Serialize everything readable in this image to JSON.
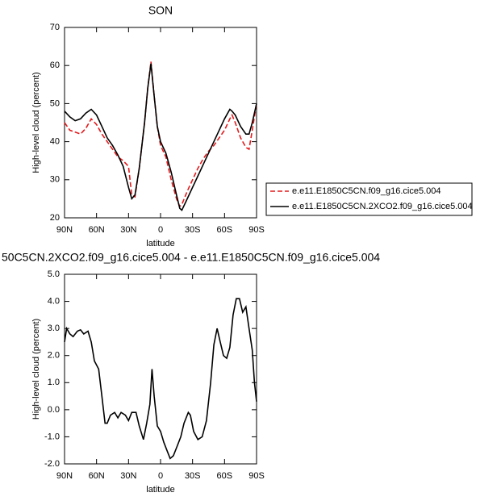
{
  "chart_data": [
    {
      "type": "line",
      "title": "SON",
      "xlabel": "latitude",
      "ylabel": "High-level cloud (percent)",
      "x": [
        90,
        85,
        80,
        75,
        70,
        65,
        60,
        55,
        50,
        45,
        40,
        35,
        30,
        27,
        24,
        20,
        15,
        12,
        9,
        6,
        3,
        0,
        -5,
        -10,
        -15,
        -18,
        -20,
        -25,
        -30,
        -35,
        -40,
        -45,
        -50,
        -55,
        -60,
        -65,
        -67,
        -70,
        -75,
        -80,
        -83,
        -86,
        -90
      ],
      "series": [
        {
          "name": "e.e11.E1850C5CN.f09_g16.cice5.004",
          "color": "#e41a1c",
          "linestyle": "dashed",
          "values": [
            45,
            43,
            42.5,
            42,
            43.5,
            46,
            44.5,
            42,
            40,
            38,
            36,
            35,
            33.5,
            26,
            25.5,
            33,
            45,
            54,
            61,
            52,
            44,
            39,
            36,
            30,
            25,
            23,
            23.5,
            27,
            30,
            33,
            35.5,
            37.5,
            39,
            41,
            43,
            46,
            47,
            45,
            41,
            38.5,
            38,
            43,
            50
          ]
        },
        {
          "name": "e.e11.E1850C5CN.2XCO2.f09_g16.cice5.004",
          "color": "#000000",
          "linestyle": "solid",
          "values": [
            48,
            46.5,
            45.5,
            46,
            47.5,
            48.5,
            47,
            44,
            41,
            39,
            36.5,
            33.5,
            28,
            25,
            26,
            33,
            45,
            54,
            60.5,
            52,
            44,
            40,
            37,
            32,
            26,
            22.5,
            22,
            25,
            28,
            31,
            34,
            37,
            40,
            43,
            46,
            48.5,
            48,
            47,
            44,
            42,
            42,
            45,
            50
          ]
        }
      ],
      "xlim": [
        90,
        -90
      ],
      "xticks": [
        {
          "value": 90,
          "label": "90N"
        },
        {
          "value": 60,
          "label": "60N"
        },
        {
          "value": 30,
          "label": "30N"
        },
        0,
        {
          "value": -30,
          "label": "30S"
        },
        {
          "value": -60,
          "label": "60S"
        },
        {
          "value": -90,
          "label": "90S"
        }
      ],
      "ylim": [
        20,
        70
      ],
      "yticks": [
        20,
        30,
        40,
        50,
        60,
        70
      ],
      "legend": "right"
    },
    {
      "type": "line",
      "title": "50C5CN.2XCO2.f09_g16.cice5.004 - e.e11.E1850C5CN.f09_g16.cice5.004",
      "xlabel": "latitude",
      "ylabel": "High-level cloud (percent)",
      "x": [
        90,
        88,
        85,
        82,
        78,
        75,
        72,
        68,
        65,
        62,
        58,
        55,
        52,
        50,
        47,
        43,
        40,
        37,
        33,
        30,
        27,
        23,
        20,
        16,
        13,
        10,
        8,
        6,
        3,
        0,
        -3,
        -6,
        -9,
        -12,
        -16,
        -19,
        -22,
        -26,
        -28,
        -31,
        -35,
        -39,
        -43,
        -47,
        -50,
        -53,
        -56,
        -59,
        -62,
        -65,
        -68,
        -71,
        -74,
        -77,
        -80,
        -83,
        -86,
        -88,
        -90
      ],
      "color": "#000000",
      "values": [
        2.5,
        3.0,
        2.8,
        2.7,
        2.9,
        2.95,
        2.8,
        2.9,
        2.5,
        1.8,
        1.5,
        0.5,
        -0.5,
        -0.5,
        -0.2,
        -0.1,
        -0.3,
        -0.1,
        -0.2,
        -0.4,
        -0.1,
        -0.1,
        -0.6,
        -1.1,
        -0.5,
        0.2,
        1.5,
        0.5,
        -0.6,
        -0.8,
        -1.2,
        -1.5,
        -1.8,
        -1.7,
        -1.3,
        -1.0,
        -0.5,
        -0.1,
        -0.2,
        -0.8,
        -1.1,
        -1.0,
        -0.4,
        1.0,
        2.4,
        3.0,
        2.5,
        2.0,
        1.9,
        2.3,
        3.5,
        4.1,
        4.1,
        3.6,
        3.8,
        3.0,
        2.2,
        1.0,
        0.3
      ],
      "xlim": [
        90,
        -90
      ],
      "xticks": [
        {
          "value": 90,
          "label": "90N"
        },
        {
          "value": 60,
          "label": "60N"
        },
        {
          "value": 30,
          "label": "30N"
        },
        0,
        {
          "value": -30,
          "label": "30S"
        },
        {
          "value": -60,
          "label": "60S"
        },
        {
          "value": -90,
          "label": "90S"
        }
      ],
      "ylim": [
        -2,
        5
      ],
      "yticks": [
        {
          "value": -2,
          "label": "-2.0"
        },
        {
          "value": -1,
          "label": "-1.0"
        },
        {
          "value": 0,
          "label": "0.0"
        },
        {
          "value": 1,
          "label": "1.0"
        },
        {
          "value": 2,
          "label": "2.0"
        },
        {
          "value": 3,
          "label": "3.0"
        },
        {
          "value": 4,
          "label": "4.0"
        },
        {
          "value": 5,
          "label": "5.0"
        }
      ]
    }
  ]
}
